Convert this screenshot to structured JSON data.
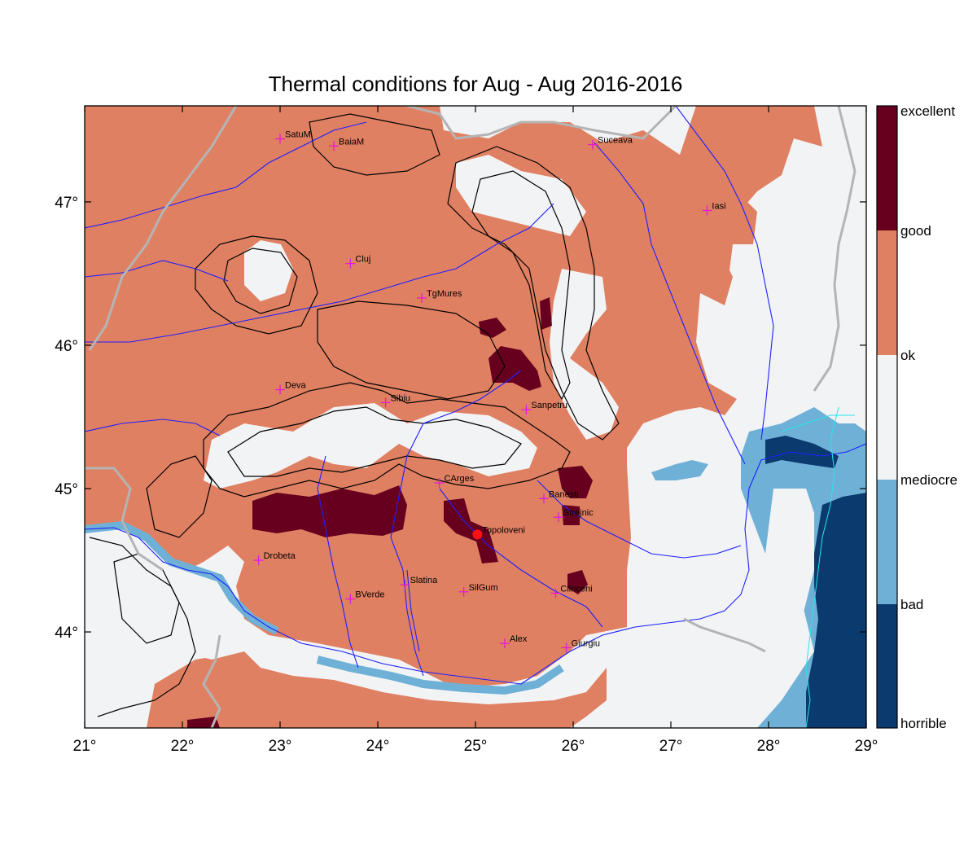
{
  "title": "Thermal conditions for Aug - Aug  2016-2016",
  "map": {
    "lon_range": [
      21,
      29
    ],
    "lat_range": [
      43.33,
      47.67
    ],
    "lon_ticks": [
      {
        "value": 21,
        "label": "21°"
      },
      {
        "value": 22,
        "label": "22°"
      },
      {
        "value": 23,
        "label": "23°"
      },
      {
        "value": 24,
        "label": "24°"
      },
      {
        "value": 25,
        "label": "25°"
      },
      {
        "value": 26,
        "label": "26°"
      },
      {
        "value": 27,
        "label": "27°"
      },
      {
        "value": 28,
        "label": "28°"
      },
      {
        "value": 29,
        "label": "29°"
      }
    ],
    "lat_ticks": [
      {
        "value": 44,
        "label": "44°"
      },
      {
        "value": 45,
        "label": "45°"
      },
      {
        "value": 46,
        "label": "46°"
      },
      {
        "value": 47,
        "label": "47°"
      }
    ],
    "cities": [
      {
        "name": "SatuM",
        "lon": 23.0,
        "lat": 47.44
      },
      {
        "name": "BaiaM",
        "lon": 23.55,
        "lat": 47.39
      },
      {
        "name": "Suceava",
        "lon": 26.2,
        "lat": 47.4
      },
      {
        "name": "Iasi",
        "lon": 27.37,
        "lat": 46.94
      },
      {
        "name": "Cluj",
        "lon": 23.72,
        "lat": 46.57
      },
      {
        "name": "TgMures",
        "lon": 24.45,
        "lat": 46.33
      },
      {
        "name": "Deva",
        "lon": 23.0,
        "lat": 45.69
      },
      {
        "name": "Sibiu",
        "lon": 24.08,
        "lat": 45.6
      },
      {
        "name": "Sanpetru",
        "lon": 25.52,
        "lat": 45.55
      },
      {
        "name": "CArges",
        "lon": 24.63,
        "lat": 45.04
      },
      {
        "name": "Banesti",
        "lon": 25.7,
        "lat": 44.93
      },
      {
        "name": "Strejnic",
        "lon": 25.85,
        "lat": 44.8
      },
      {
        "name": "Topoloveni",
        "lon": 25.02,
        "lat": 44.68
      },
      {
        "name": "Drobeta",
        "lon": 22.78,
        "lat": 44.5
      },
      {
        "name": "Slatina",
        "lon": 24.28,
        "lat": 44.33
      },
      {
        "name": "SilGum",
        "lon": 24.88,
        "lat": 44.28
      },
      {
        "name": "Clinceni",
        "lon": 25.82,
        "lat": 44.27
      },
      {
        "name": "BVerde",
        "lon": 23.72,
        "lat": 44.23
      },
      {
        "name": "Alex",
        "lon": 25.3,
        "lat": 43.92
      },
      {
        "name": "Giurgiu",
        "lon": 25.93,
        "lat": 43.89
      }
    ],
    "highlight_city": "Topoloveni",
    "colors": {
      "excellent": "#67001f",
      "good": "#e08062",
      "ok": "#f2f3f5",
      "mediocre": "#6fb1d6",
      "bad": "#0b3a6e",
      "marker": "#e21bd5",
      "highlight": "#ff1010",
      "river": "#1f1fff",
      "border": "#b4b4b4",
      "contour": "#000000",
      "coast": "#28e4ee"
    }
  },
  "legend": {
    "labels": [
      "excellent",
      "good",
      "ok",
      "mediocre",
      "bad",
      "horrible"
    ]
  }
}
